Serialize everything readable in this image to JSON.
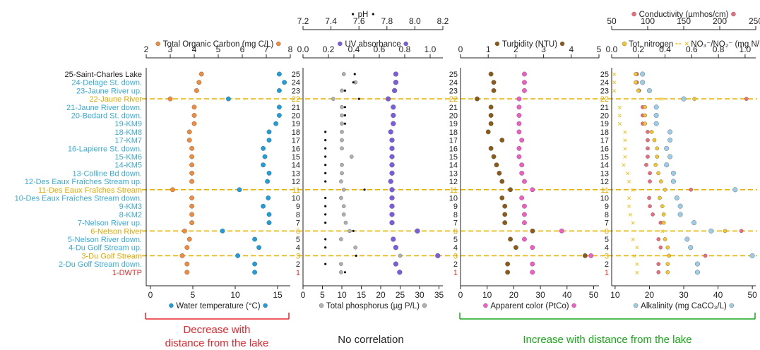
{
  "colors": {
    "highlight": "#e8b400",
    "site_blue": "#3aaad6",
    "site_highlight": "#e0a800",
    "site_dwtp": "#e03030",
    "toc": "#f28c3b",
    "temp": "#1c9fdc",
    "ph": "#111111",
    "uv": "#7a5ce0",
    "tp": "#b0b0b0",
    "turb": "#8c5a16",
    "color": "#f25cc8",
    "cond": "#ef6a7b",
    "tn": "#f7c525",
    "no3": "#f2b800",
    "alk": "#9ccde8",
    "decrease": "#e8262d",
    "nocorr": "#222222",
    "increase": "#1aa81a"
  },
  "sites": [
    {
      "idx": "25",
      "label": "25-Saint-Charles Lake",
      "kind": "lake"
    },
    {
      "idx": "24",
      "label": "24-Delage St. down.",
      "kind": "normal"
    },
    {
      "idx": "23",
      "label": "23-Jaune River up.",
      "kind": "normal"
    },
    {
      "idx": "22",
      "label": "22-Jaune River",
      "kind": "highlight"
    },
    {
      "idx": "21",
      "label": "21-Jaune River down.",
      "kind": "normal"
    },
    {
      "idx": "20",
      "label": "20-Bedard St. down.",
      "kind": "normal"
    },
    {
      "idx": "19",
      "label": "19-KM9",
      "kind": "normal"
    },
    {
      "idx": "18",
      "label": "18-KM8",
      "kind": "normal"
    },
    {
      "idx": "17",
      "label": "17-KM7",
      "kind": "normal"
    },
    {
      "idx": "16",
      "label": "16-Lapierre St. down.",
      "kind": "normal"
    },
    {
      "idx": "15",
      "label": "15-KM6",
      "kind": "normal"
    },
    {
      "idx": "14",
      "label": "14-KM5",
      "kind": "normal"
    },
    {
      "idx": "13",
      "label": "13-Colline Bd down.",
      "kind": "normal"
    },
    {
      "idx": "12",
      "label": "12-Des Eaux Fraîches Stream up.",
      "kind": "normal"
    },
    {
      "idx": "11",
      "label": "11-Des Eaux Fraîches Stream",
      "kind": "highlight"
    },
    {
      "idx": "10",
      "label": "10-Des Eaux Fraîches Stream down.",
      "kind": "normal"
    },
    {
      "idx": "9",
      "label": "9-KM3",
      "kind": "normal"
    },
    {
      "idx": "8",
      "label": "8-KM2",
      "kind": "normal"
    },
    {
      "idx": "7",
      "label": "7-Nelson River up.",
      "kind": "normal"
    },
    {
      "idx": "6",
      "label": "6-Nelson River",
      "kind": "highlight"
    },
    {
      "idx": "5",
      "label": "5-Nelson River down.",
      "kind": "normal"
    },
    {
      "idx": "4",
      "label": "4-Du Golf Stream up.",
      "kind": "normal"
    },
    {
      "idx": "3",
      "label": "3-Du Golf Stream",
      "kind": "highlight"
    },
    {
      "idx": "2",
      "label": "2-Du Golf Stream down.",
      "kind": "normal"
    },
    {
      "idx": "1",
      "label": "1-DWTP",
      "kind": "dwtp"
    }
  ],
  "chart_data": [
    {
      "type": "scatter",
      "panel": "left",
      "top_axis": {
        "label": "Total Organic Carbon (mg C/L)",
        "range": [
          2,
          8
        ],
        "ticks": [
          "2",
          "3",
          "4",
          "5",
          "6",
          "7",
          "8"
        ]
      },
      "bottom_axis": {
        "label": "Water temperature (°C)",
        "range": [
          -0.5,
          16.5
        ],
        "ticks": [
          "0",
          "5",
          "10",
          "15"
        ]
      },
      "series": [
        {
          "name": "Total Organic Carbon (mg C/L)",
          "axis": "top",
          "color": "toc",
          "shape": "circle",
          "values": [
            4.3,
            4.2,
            4.1,
            3.0,
            4.0,
            4.0,
            4.0,
            3.8,
            3.8,
            3.9,
            3.9,
            3.9,
            3.9,
            3.9,
            3.1,
            3.9,
            3.9,
            3.9,
            3.9,
            3.6,
            3.8,
            3.7,
            3.5,
            3.7,
            3.7
          ]
        },
        {
          "name": "Water temperature (°C)",
          "axis": "bottom",
          "color": "temp",
          "shape": "circle",
          "values": [
            15.2,
            15.8,
            15.2,
            9.2,
            15.2,
            15.2,
            14.8,
            14.0,
            14.0,
            13.3,
            13.5,
            13.3,
            14.0,
            13.8,
            10.5,
            13.9,
            13.3,
            14.0,
            14.0,
            8.5,
            12.3,
            12.8,
            10.3,
            12.3,
            12.3
          ]
        }
      ]
    },
    {
      "type": "scatter",
      "panel": "center-left",
      "top_axis": {
        "label": "pH",
        "range": [
          7.2,
          8.2
        ],
        "ticks": [
          "7.2",
          "7.4",
          "7.6",
          "7.8",
          "8.0",
          "8.2"
        ]
      },
      "middle_axis": {
        "label": "UV absorbance",
        "range": [
          0,
          1.1
        ],
        "ticks": [
          "0.0",
          "0.2",
          "0.4",
          "0.6",
          "0.8",
          "1.0"
        ]
      },
      "bottom_axis": {
        "label": "Total phosphorus (µg P/L)",
        "range": [
          0,
          36
        ],
        "ticks": [
          "0",
          "5",
          "10",
          "15",
          "20",
          "25",
          "30",
          "35"
        ]
      },
      "series": [
        {
          "name": "pH",
          "axis": "top",
          "color": "ph",
          "shape": "dot",
          "values": [
            7.57,
            7.56,
            7.5,
            7.6,
            7.5,
            7.5,
            7.5,
            7.36,
            7.36,
            7.36,
            7.36,
            7.36,
            7.36,
            7.36,
            7.64,
            7.36,
            7.36,
            7.36,
            7.36,
            7.56,
            7.36,
            7.36,
            7.58,
            7.36,
            7.5
          ]
        },
        {
          "name": "Total phosphorus (µg P/L)",
          "axis": "bottom",
          "color": "tp",
          "shape": "circle",
          "values": [
            10.5,
            13.5,
            10.0,
            7.8,
            10.0,
            10.0,
            10.0,
            10.0,
            10.0,
            10.0,
            12.5,
            10.0,
            10.0,
            9.8,
            10.5,
            9.8,
            10.5,
            10.5,
            11.0,
            12.0,
            9.8,
            13.5,
            25.0,
            9.8,
            9.8
          ]
        },
        {
          "name": "UV absorbance",
          "axis": "middle",
          "color": "uv",
          "shape": "circle",
          "values": [
            0.73,
            0.73,
            0.72,
            0.67,
            0.71,
            0.71,
            0.71,
            0.69,
            0.7,
            0.7,
            0.7,
            0.7,
            0.7,
            0.69,
            0.7,
            0.7,
            0.7,
            0.7,
            0.7,
            0.9,
            0.71,
            0.73,
            1.06,
            0.73,
            0.76
          ]
        }
      ]
    },
    {
      "type": "scatter",
      "panel": "center-right",
      "top_axis": {
        "label": "Turbidity (NTU)",
        "range": [
          0,
          5
        ],
        "ticks": [
          "0",
          "1",
          "2",
          "3",
          "4",
          "5"
        ]
      },
      "bottom_axis": {
        "label": "Apparent color (PtCo)",
        "range": [
          0,
          52
        ],
        "ticks": [
          "0",
          "10",
          "20",
          "30",
          "40",
          "50"
        ]
      },
      "series": [
        {
          "name": "Turbidity (NTU)",
          "axis": "top",
          "color": "turb",
          "shape": "circle",
          "values": [
            1.1,
            1.2,
            1.2,
            0.6,
            1.1,
            1.1,
            1.1,
            1.0,
            1.5,
            1.1,
            1.2,
            1.3,
            1.4,
            1.5,
            1.8,
            1.5,
            1.6,
            1.6,
            1.6,
            2.6,
            1.8,
            2.0,
            4.5,
            1.7,
            1.7
          ]
        },
        {
          "name": "Apparent color (PtCo)",
          "axis": "bottom",
          "color": "color",
          "shape": "circle",
          "values": [
            24,
            24,
            24,
            22,
            22,
            22,
            22,
            22,
            23,
            22,
            22,
            23,
            23,
            24,
            27,
            23,
            24,
            24,
            24,
            38,
            24,
            27,
            49,
            27,
            27
          ]
        }
      ]
    },
    {
      "type": "scatter",
      "panel": "right",
      "top_axis": {
        "label": "Conductivity (µmhos/cm)",
        "range": [
          50,
          250
        ],
        "ticks": [
          "50",
          "100",
          "150",
          "200",
          "250"
        ]
      },
      "middle_axis": {
        "label": "Tot. nitrogen",
        "label2": "NO₃⁻/NO₂⁻ (mg N/L)",
        "range": [
          0,
          1.08
        ],
        "ticks": [
          "0.0",
          "0.2",
          "0.4",
          "0.6",
          "0.8",
          "1.0"
        ]
      },
      "bottom_axis": {
        "label": "Alkalinity (mg CaCO₃/L)",
        "range": [
          9,
          51
        ],
        "ticks": [
          "10",
          "20",
          "30",
          "40",
          "50"
        ]
      },
      "series": [
        {
          "name": "Conductivity (µmhos/cm)",
          "axis": "top",
          "color": "cond",
          "shape": "circle",
          "values": [
            85,
            85,
            88,
            237,
            93,
            93,
            93,
            100,
            100,
            100,
            100,
            98,
            103,
            103,
            160,
            102,
            103,
            107,
            118,
            230,
            115,
            118,
            180,
            115,
            115
          ]
        },
        {
          "name": "Tot. nitrogen",
          "axis": "middle",
          "color": "tn",
          "shape": "circle",
          "values": [
            0.18,
            0.18,
            0.2,
            0.62,
            0.25,
            0.25,
            0.25,
            0.3,
            0.32,
            0.34,
            0.34,
            0.33,
            0.35,
            0.37,
            0.4,
            0.36,
            0.38,
            0.39,
            0.39,
            0.85,
            0.4,
            0.42,
            0.43,
            0.42,
            0.42
          ]
        },
        {
          "name": "NO₃⁻/NO₂⁻ (mg N/L)",
          "axis": "middle",
          "color": "no3",
          "shape": "cross",
          "values": [
            0.02,
            0.02,
            0.02,
            0.37,
            0.06,
            0.06,
            0.06,
            0.1,
            0.1,
            0.1,
            0.1,
            0.09,
            0.12,
            0.13,
            0.16,
            0.13,
            0.13,
            0.14,
            0.16,
            0.38,
            0.16,
            0.19,
            0.17,
            0.19,
            0.19
          ]
        },
        {
          "name": "Alkalinity (mg CaCO₃/L)",
          "axis": "bottom",
          "color": "alk",
          "shape": "circle",
          "values": [
            18,
            18,
            20,
            30,
            22,
            22,
            22,
            26,
            26,
            25,
            26,
            25,
            27,
            27,
            45,
            28,
            29,
            29,
            33,
            38,
            31,
            32,
            50,
            34,
            34
          ]
        }
      ]
    }
  ],
  "annotations": {
    "decrease_line1": "Decrease with",
    "decrease_line2": "distance from the lake",
    "nocorr": "No correlation",
    "increase": "Increase with distance from the lake"
  }
}
